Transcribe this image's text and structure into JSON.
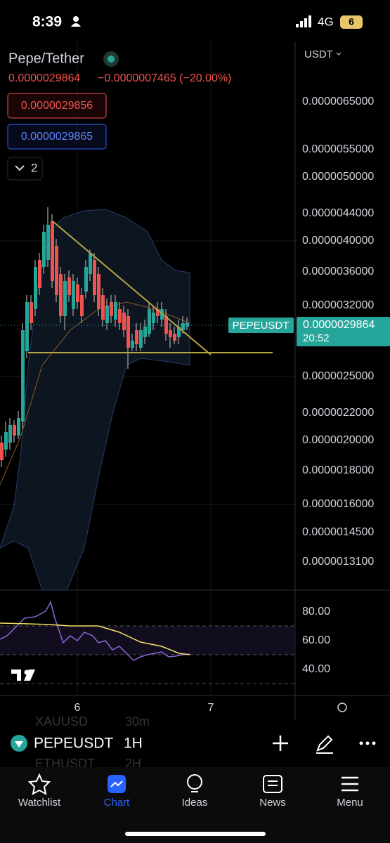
{
  "status_bar": {
    "time": "8:39",
    "network": "4G",
    "battery": "6"
  },
  "symbol": {
    "name": "Pepe/Tether",
    "price": "0.0000029864",
    "change": "−0.0000007465 (−20.00%)",
    "sell": "0.0000029856",
    "buy": "0.0000029865",
    "indicators_count": "2"
  },
  "price_axis": {
    "currency": "USDT",
    "labels": [
      "0.0000065000",
      "0.0000055000",
      "0.0000050000",
      "0.0000044000",
      "0.0000040000",
      "0.0000036000",
      "0.0000032000",
      "0.0000025000",
      "0.0000022000",
      "0.0000020000",
      "0.0000018000",
      "0.0000016000",
      "0.0000014500",
      "0.0000013100"
    ],
    "last_price": {
      "symbol": "PEPEUSDT",
      "price": "0.0000029864",
      "countdown": "20:52"
    }
  },
  "rsi_axis": {
    "labels": [
      "80.00",
      "60.00",
      "40.00"
    ]
  },
  "time_axis": {
    "labels": [
      "6",
      "7"
    ]
  },
  "toolbar": {
    "symbol": "PEPEUSDT",
    "interval": "1H",
    "behind": [
      {
        "symbol": "XAUUSD",
        "interval": "30m"
      },
      {
        "symbol": "ETHUSDT",
        "interval": "2H"
      }
    ]
  },
  "nav": [
    {
      "label": "Watchlist"
    },
    {
      "label": "Chart"
    },
    {
      "label": "Ideas"
    },
    {
      "label": "News"
    },
    {
      "label": "Menu"
    }
  ]
}
